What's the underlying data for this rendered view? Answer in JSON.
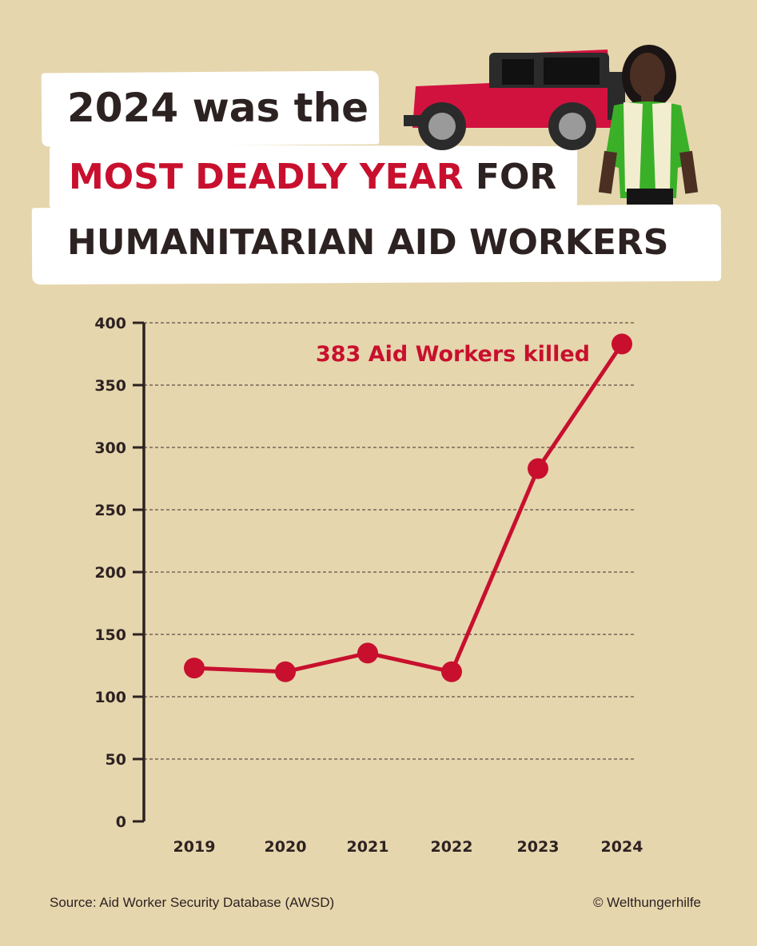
{
  "title": {
    "line1": "2024 was the",
    "line2_accent": "MOST DEADLY YEAR",
    "line2_rest": " FOR",
    "line3": "HUMANITARIAN AID WORKERS"
  },
  "footer": {
    "source": "Source: Aid Worker Security Database (AWSD)",
    "copyright": "© Welthungerhilfe"
  },
  "colors": {
    "background": "#e6d6ad",
    "accent": "#c8102e",
    "text": "#2d2222"
  },
  "chart_data": {
    "type": "line",
    "categories": [
      "2019",
      "2020",
      "2021",
      "2022",
      "2023",
      "2024"
    ],
    "values": [
      123,
      120,
      135,
      120,
      283,
      383
    ],
    "ylim": [
      0,
      400
    ],
    "yticks": [
      0,
      50,
      100,
      150,
      200,
      250,
      300,
      350,
      400
    ],
    "grid": "dashed horizontal",
    "annotation": "383 Aid Workers killed",
    "xlabel": "",
    "ylabel": ""
  }
}
